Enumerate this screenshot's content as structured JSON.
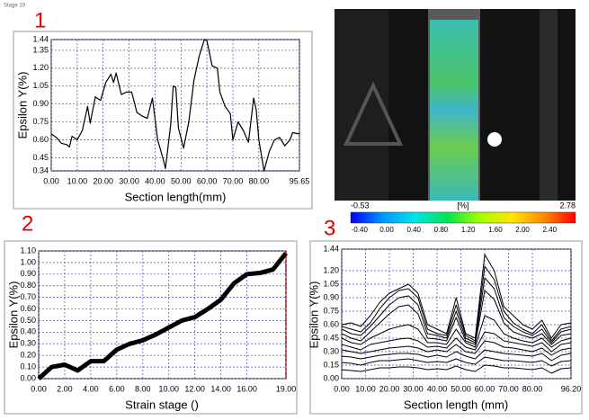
{
  "stage_label": "Stage 19",
  "panel_labels": [
    "1",
    "2",
    "3"
  ],
  "colorbar": {
    "min": -0.53,
    "max": 2.78,
    "unit": "[%]",
    "colors": [
      "#0000ff",
      "#0096ff",
      "#00e6e6",
      "#00e650",
      "#a0ff00",
      "#ffe600",
      "#ff8c00",
      "#ff0000"
    ],
    "ticks": [
      {
        "value": -0.4,
        "label": "-0.40"
      },
      {
        "value": 0,
        "label": "0.00"
      },
      {
        "value": 0.4,
        "label": "0.40"
      },
      {
        "value": 0.8,
        "label": "0.80"
      },
      {
        "value": 1.2,
        "label": "1.20"
      },
      {
        "value": 1.6,
        "label": "1.60"
      },
      {
        "value": 2.0,
        "label": "2.00"
      },
      {
        "value": 2.4,
        "label": "2.40"
      }
    ]
  },
  "chart_data": [
    {
      "type": "line",
      "xlabel": "Section length(mm)",
      "ylabel": "Epsilon Y(%)",
      "grid": true,
      "color": "#000000",
      "x": [
        0,
        2,
        4,
        6,
        7,
        8,
        10,
        12,
        14,
        15,
        17,
        19,
        21,
        23,
        24,
        25,
        27,
        29,
        31,
        33,
        35,
        37,
        39,
        41,
        43,
        44,
        46,
        47,
        48,
        49,
        51,
        53,
        55,
        57,
        59,
        60,
        62,
        64,
        65,
        67,
        69,
        70,
        72,
        74,
        76,
        78,
        79,
        80,
        82,
        84,
        86,
        88,
        90,
        92,
        93,
        95.65
      ],
      "values": [
        0.65,
        0.62,
        0.57,
        0.56,
        0.54,
        0.63,
        0.6,
        0.68,
        0.88,
        0.74,
        0.96,
        0.93,
        1.08,
        1.15,
        1.08,
        1.16,
        0.98,
        1.0,
        1.0,
        0.83,
        0.8,
        0.78,
        0.95,
        0.6,
        0.45,
        0.36,
        0.72,
        1.05,
        1.04,
        0.7,
        0.53,
        0.75,
        1.1,
        1.3,
        1.44,
        1.43,
        1.22,
        1.2,
        1.0,
        0.88,
        0.82,
        0.6,
        0.75,
        0.68,
        0.58,
        0.95,
        0.85,
        0.6,
        0.34,
        0.5,
        0.6,
        0.62,
        0.55,
        0.6,
        0.66,
        0.65
      ],
      "xlim": [
        0,
        95.65
      ],
      "xticks": [
        {
          "value": 0,
          "label": "0.00"
        },
        {
          "value": 10,
          "label": "10.00"
        },
        {
          "value": 20,
          "label": "20.00"
        },
        {
          "value": 30,
          "label": "30.00"
        },
        {
          "value": 40,
          "label": "40.00"
        },
        {
          "value": 50,
          "label": "50.00"
        },
        {
          "value": 60,
          "label": "60.00"
        },
        {
          "value": 70,
          "label": "70.00"
        },
        {
          "value": 80,
          "label": "80.00"
        },
        95.65
      ],
      "ylim": [
        0.34,
        1.44
      ],
      "yticks": [
        0.34,
        0.45,
        {
          "value": 0.6,
          "label": "0.60"
        },
        0.75,
        {
          "value": 0.9,
          "label": "0.90"
        },
        1.05,
        {
          "value": 1.2,
          "label": "1.20"
        },
        1.35,
        1.44
      ]
    },
    {
      "type": "line",
      "xlabel": "Strain stage ()",
      "ylabel": "Epsilon Y(%)",
      "grid": true,
      "color": "#000000",
      "marker_x": 19,
      "marker_color": "#c00000",
      "x": [
        0,
        1,
        2,
        3,
        4,
        5,
        6,
        7,
        8,
        9,
        10,
        11,
        12,
        13,
        14,
        15,
        16,
        17,
        18,
        19
      ],
      "values": [
        0.0,
        0.1,
        0.12,
        0.07,
        0.15,
        0.15,
        0.25,
        0.3,
        0.33,
        0.38,
        0.44,
        0.5,
        0.53,
        0.6,
        0.68,
        0.82,
        0.9,
        0.91,
        0.94,
        1.08
      ],
      "xlim": [
        0,
        19
      ],
      "xticks": [
        {
          "value": 0,
          "label": "0.00"
        },
        {
          "value": 2,
          "label": "2.00"
        },
        {
          "value": 4,
          "label": "4.00"
        },
        {
          "value": 6,
          "label": "6.00"
        },
        {
          "value": 8,
          "label": "8.00"
        },
        {
          "value": 10,
          "label": "10.00"
        },
        {
          "value": 12,
          "label": "12.00"
        },
        {
          "value": 14,
          "label": "14.00"
        },
        {
          "value": 16,
          "label": "16.00"
        },
        {
          "value": 19,
          "label": "19.00"
        }
      ],
      "ylim": [
        0,
        1.1
      ],
      "yticks": [
        {
          "value": 0,
          "label": "0.00"
        },
        {
          "value": 0.1,
          "label": "0.10"
        },
        {
          "value": 0.2,
          "label": "0.20"
        },
        {
          "value": 0.3,
          "label": "0.30"
        },
        {
          "value": 0.4,
          "label": "0.40"
        },
        {
          "value": 0.5,
          "label": "0.50"
        },
        {
          "value": 0.6,
          "label": "0.60"
        },
        {
          "value": 0.7,
          "label": "0.70"
        },
        {
          "value": 0.8,
          "label": "0.80"
        },
        {
          "value": 0.9,
          "label": "0.90"
        },
        {
          "value": 1,
          "label": "1.00"
        },
        {
          "value": 1.1,
          "label": "1.10"
        }
      ]
    },
    {
      "type": "line",
      "xlabel": "Section length (mm)",
      "ylabel": "Epsilon Y(%)",
      "grid": true,
      "x": [
        0,
        4,
        8,
        12,
        16,
        20,
        24,
        28,
        32,
        36,
        40,
        44,
        48,
        52,
        56,
        60,
        64,
        68,
        72,
        76,
        80,
        84,
        88,
        92,
        96.2
      ],
      "series": [
        {
          "color": "#000000",
          "values": [
            0.6,
            0.62,
            0.58,
            0.7,
            0.85,
            0.95,
            1.0,
            1.05,
            0.95,
            0.6,
            0.55,
            0.5,
            0.9,
            0.5,
            0.45,
            1.38,
            1.2,
            0.8,
            0.7,
            0.6,
            0.55,
            0.65,
            0.45,
            0.6,
            0.62
          ]
        },
        {
          "color": "#000000",
          "values": [
            0.58,
            0.55,
            0.52,
            0.62,
            0.78,
            0.9,
            0.98,
            1.0,
            0.9,
            0.55,
            0.5,
            0.48,
            0.82,
            0.48,
            0.42,
            1.25,
            1.1,
            0.75,
            0.62,
            0.55,
            0.5,
            0.6,
            0.42,
            0.55,
            0.58
          ]
        },
        {
          "color": "#000000",
          "values": [
            0.55,
            0.5,
            0.48,
            0.58,
            0.7,
            0.82,
            0.9,
            0.92,
            0.82,
            0.5,
            0.48,
            0.45,
            0.75,
            0.45,
            0.4,
            1.12,
            1.0,
            0.68,
            0.58,
            0.52,
            0.48,
            0.55,
            0.4,
            0.52,
            0.55
          ]
        },
        {
          "color": "#000000",
          "values": [
            0.5,
            0.45,
            0.42,
            0.52,
            0.62,
            0.72,
            0.8,
            0.82,
            0.72,
            0.45,
            0.44,
            0.42,
            0.68,
            0.42,
            0.38,
            0.98,
            0.88,
            0.62,
            0.52,
            0.48,
            0.45,
            0.5,
            0.38,
            0.48,
            0.5
          ]
        },
        {
          "color": "#000000",
          "values": [
            0.45,
            0.4,
            0.38,
            0.45,
            0.5,
            0.55,
            0.58,
            0.6,
            0.55,
            0.4,
            0.4,
            0.38,
            0.55,
            0.4,
            0.35,
            0.7,
            0.65,
            0.5,
            0.45,
            0.42,
            0.4,
            0.45,
            0.35,
            0.42,
            0.45
          ]
        },
        {
          "color": "#000000",
          "values": [
            0.38,
            0.35,
            0.32,
            0.38,
            0.4,
            0.42,
            0.44,
            0.45,
            0.42,
            0.35,
            0.36,
            0.34,
            0.45,
            0.35,
            0.32,
            0.52,
            0.5,
            0.42,
            0.4,
            0.38,
            0.36,
            0.4,
            0.3,
            0.38,
            0.4
          ]
        },
        {
          "color": "#000000",
          "values": [
            0.32,
            0.3,
            0.28,
            0.3,
            0.32,
            0.34,
            0.35,
            0.36,
            0.34,
            0.3,
            0.32,
            0.3,
            0.38,
            0.3,
            0.28,
            0.42,
            0.4,
            0.35,
            0.34,
            0.32,
            0.3,
            0.34,
            0.26,
            0.32,
            0.34
          ]
        },
        {
          "color": "#000000",
          "values": [
            0.25,
            0.24,
            0.22,
            0.24,
            0.26,
            0.27,
            0.28,
            0.28,
            0.27,
            0.24,
            0.26,
            0.24,
            0.3,
            0.25,
            0.22,
            0.32,
            0.3,
            0.28,
            0.27,
            0.26,
            0.25,
            0.28,
            0.2,
            0.26,
            0.28
          ]
        },
        {
          "color": "#000000",
          "values": [
            0.18,
            0.17,
            0.15,
            0.18,
            0.2,
            0.2,
            0.21,
            0.22,
            0.2,
            0.18,
            0.19,
            0.18,
            0.22,
            0.18,
            0.16,
            0.24,
            0.22,
            0.2,
            0.2,
            0.19,
            0.18,
            0.2,
            0.14,
            0.19,
            0.2
          ]
        },
        {
          "color": "#000000",
          "values": [
            0.1,
            0.09,
            0.08,
            0.1,
            0.12,
            0.12,
            0.13,
            0.13,
            0.12,
            0.1,
            0.11,
            0.1,
            0.14,
            0.1,
            0.08,
            0.15,
            0.14,
            0.12,
            0.12,
            0.11,
            0.1,
            0.12,
            0.06,
            0.11,
            0.12
          ]
        }
      ],
      "xlim": [
        0,
        96.2
      ],
      "xticks": [
        {
          "value": 0,
          "label": "0.00"
        },
        {
          "value": 10,
          "label": "10.00"
        },
        {
          "value": 20,
          "label": "20.00"
        },
        {
          "value": 30,
          "label": "30.00"
        },
        {
          "value": 40,
          "label": "40.00"
        },
        {
          "value": 50,
          "label": "50.00"
        },
        {
          "value": 60,
          "label": "60.00"
        },
        {
          "value": 70,
          "label": "70.00"
        },
        {
          "value": 80,
          "label": "80.00"
        },
        {
          "value": 96.2,
          "label": "96.20"
        }
      ],
      "ylim": [
        0,
        1.44
      ],
      "yticks": [
        {
          "value": 0,
          "label": "0.00"
        },
        0.15,
        {
          "value": 0.3,
          "label": "0.30"
        },
        0.45,
        {
          "value": 0.6,
          "label": "0.60"
        },
        0.75,
        {
          "value": 0.9,
          "label": "0.90"
        },
        1.05,
        {
          "value": 1.2,
          "label": "1.20"
        },
        1.44
      ]
    }
  ]
}
